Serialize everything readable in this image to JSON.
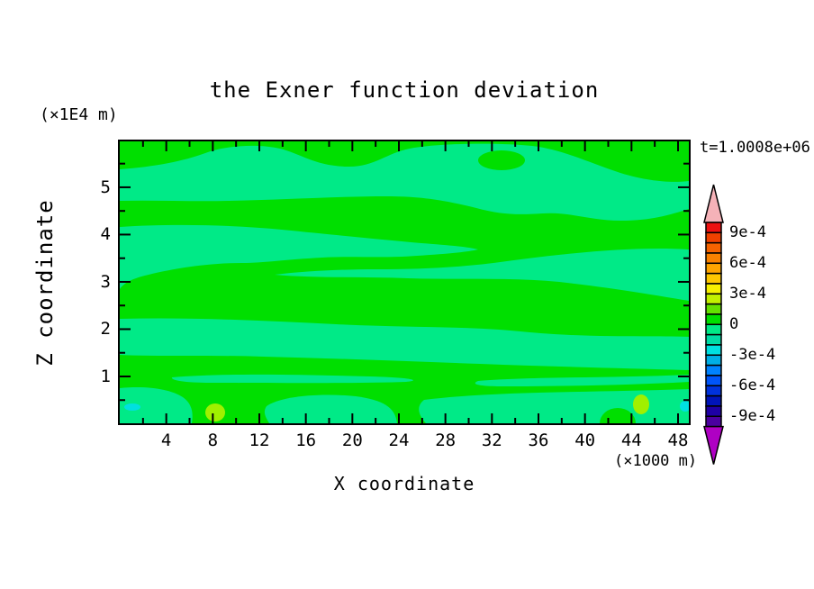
{
  "chart_data": {
    "type": "heatmap",
    "title": "the Exner function deviation",
    "timestamp": "t=1.0008e+06",
    "xlabel": "X coordinate",
    "x_unit": "(×1000 m)",
    "ylabel": "Z coordinate",
    "y_unit": "(×1E4 m)",
    "x_range": [
      0,
      48.93
    ],
    "y_range": [
      0,
      5.97
    ],
    "x_ticks_major": [
      "4",
      "8",
      "12",
      "16",
      "20",
      "24",
      "28",
      "32",
      "36",
      "40",
      "44",
      "48"
    ],
    "x_ticks_minor": [
      2,
      6,
      10,
      14,
      18,
      22,
      26,
      30,
      34,
      38,
      42,
      46
    ],
    "y_ticks_major": [
      "1",
      "2",
      "3",
      "4",
      "5"
    ],
    "y_ticks_minor": [
      0.5,
      1.5,
      2.5,
      3.5,
      4.5,
      5.5
    ],
    "grid": false,
    "legend_position": "right-colorbar",
    "colorbar": {
      "labels": [
        "9e-4",
        "6e-4",
        "3e-4",
        "0",
        "-3e-4",
        "-6e-4",
        "-9e-4"
      ],
      "level_step": "1e-4",
      "range": [
        "-1e-3",
        "+1e-3"
      ],
      "label_every_n_boxes": 3,
      "first_label_at_boundary": 1,
      "box_colors_top_to_bottom": [
        "#EE1111",
        "#F04100",
        "#F56300",
        "#FA8200",
        "#FFA500",
        "#FFC800",
        "#F7F000",
        "#C3F000",
        "#64E100",
        "#00DF00",
        "#00EA87",
        "#00DCA5",
        "#00E0E0",
        "#00AFE6",
        "#0082FF",
        "#0055FA",
        "#0032DC",
        "#0014B9",
        "#1E00A5",
        "#4B00A0"
      ],
      "over_arrow_color": "#F5B2B8",
      "under_arrow_color": "#AF00C3"
    },
    "palette": {
      "band_pos": "#00DF00",
      "band_neg": "#00EA87",
      "spot_pos": "#A0F000",
      "spot_neg": "#00E0E0"
    },
    "field_summary": {
      "dominant_band": "0 to +1e-4 (green background)",
      "secondary_band": "-1e-4 to 0 (spring-green wavy horizontal stripes)",
      "positive_spots": "two small +2e-4..3e-4 yellow-green spots near bottom at x≈9 and x≈45",
      "negative_spots": "tiny -2e-4 cyan specks at bottom-left and bottom-right edges"
    }
  }
}
